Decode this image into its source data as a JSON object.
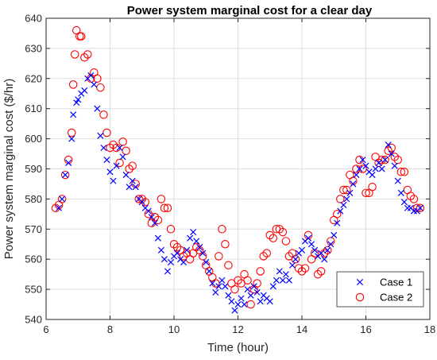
{
  "chart_data": {
    "type": "scatter",
    "title": "Power system marginal cost for a clear day",
    "xlabel": "Time (hour)",
    "ylabel": "Power system marginal cost ($/hr)",
    "xlim": [
      6,
      18
    ],
    "ylim": [
      540,
      640
    ],
    "xticks": [
      "6",
      "8",
      "10",
      "12",
      "14",
      "16",
      "18"
    ],
    "yticks": [
      "540",
      "550",
      "560",
      "570",
      "580",
      "590",
      "600",
      "610",
      "620",
      "630",
      "640"
    ],
    "grid": true,
    "legend_position": "bottom-right",
    "series": [
      {
        "name": "Case 1",
        "marker": "x",
        "color": "#0000ff",
        "points": [
          [
            6.4,
            577
          ],
          [
            6.5,
            580
          ],
          [
            6.6,
            588
          ],
          [
            6.7,
            592
          ],
          [
            6.8,
            600
          ],
          [
            6.85,
            608
          ],
          [
            6.95,
            612
          ],
          [
            7.0,
            613
          ],
          [
            7.1,
            615
          ],
          [
            7.2,
            616
          ],
          [
            7.3,
            620
          ],
          [
            7.4,
            621
          ],
          [
            7.5,
            618
          ],
          [
            7.6,
            610
          ],
          [
            7.7,
            601
          ],
          [
            7.8,
            597
          ],
          [
            7.9,
            593
          ],
          [
            8.0,
            589
          ],
          [
            8.1,
            586
          ],
          [
            8.2,
            591
          ],
          [
            8.3,
            597
          ],
          [
            8.4,
            594
          ],
          [
            8.5,
            588
          ],
          [
            8.6,
            584
          ],
          [
            8.7,
            586
          ],
          [
            8.8,
            584
          ],
          [
            8.9,
            580
          ],
          [
            9.0,
            579
          ],
          [
            9.1,
            577
          ],
          [
            9.2,
            576
          ],
          [
            9.3,
            574
          ],
          [
            9.4,
            572
          ],
          [
            9.5,
            567
          ],
          [
            9.6,
            563
          ],
          [
            9.7,
            560
          ],
          [
            9.8,
            556
          ],
          [
            9.9,
            559
          ],
          [
            10.0,
            561
          ],
          [
            10.1,
            562
          ],
          [
            10.2,
            560
          ],
          [
            10.3,
            559
          ],
          [
            10.4,
            563
          ],
          [
            10.5,
            567
          ],
          [
            10.6,
            569
          ],
          [
            10.7,
            566
          ],
          [
            10.8,
            564
          ],
          [
            10.9,
            562
          ],
          [
            11.0,
            559
          ],
          [
            11.1,
            556
          ],
          [
            11.2,
            552
          ],
          [
            11.3,
            549
          ],
          [
            11.4,
            551
          ],
          [
            11.5,
            553
          ],
          [
            11.6,
            551
          ],
          [
            11.7,
            548
          ],
          [
            11.8,
            546
          ],
          [
            11.9,
            543
          ],
          [
            12.0,
            545
          ],
          [
            12.1,
            547
          ],
          [
            12.2,
            545
          ],
          [
            12.3,
            550
          ],
          [
            12.4,
            548
          ],
          [
            12.5,
            551
          ],
          [
            12.6,
            549
          ],
          [
            12.7,
            546
          ],
          [
            12.8,
            548
          ],
          [
            12.9,
            547
          ],
          [
            13.0,
            546
          ],
          [
            13.1,
            551
          ],
          [
            13.2,
            553
          ],
          [
            13.3,
            556
          ],
          [
            13.4,
            553
          ],
          [
            13.5,
            555
          ],
          [
            13.6,
            553
          ],
          [
            13.7,
            558
          ],
          [
            13.8,
            560
          ],
          [
            13.9,
            562
          ],
          [
            14.0,
            563
          ],
          [
            14.1,
            566
          ],
          [
            14.2,
            567
          ],
          [
            14.3,
            565
          ],
          [
            14.4,
            563
          ],
          [
            14.5,
            561
          ],
          [
            14.6,
            562
          ],
          [
            14.7,
            560
          ],
          [
            14.8,
            563
          ],
          [
            14.9,
            565
          ],
          [
            15.0,
            568
          ],
          [
            15.1,
            572
          ],
          [
            15.2,
            576
          ],
          [
            15.3,
            578
          ],
          [
            15.4,
            580
          ],
          [
            15.5,
            582
          ],
          [
            15.6,
            585
          ],
          [
            15.7,
            588
          ],
          [
            15.8,
            590
          ],
          [
            15.9,
            593
          ],
          [
            16.0,
            591
          ],
          [
            16.1,
            589
          ],
          [
            16.2,
            588
          ],
          [
            16.3,
            590
          ],
          [
            16.4,
            592
          ],
          [
            16.5,
            590
          ],
          [
            16.6,
            593
          ],
          [
            16.7,
            598
          ],
          [
            16.8,
            595
          ],
          [
            16.9,
            591
          ],
          [
            17.0,
            586
          ],
          [
            17.1,
            582
          ],
          [
            17.2,
            579
          ],
          [
            17.3,
            577
          ],
          [
            17.4,
            577
          ],
          [
            17.5,
            576
          ],
          [
            17.6,
            576
          ],
          [
            17.7,
            577
          ]
        ]
      },
      {
        "name": "Case 2",
        "marker": "o",
        "color": "#ff0000",
        "points": [
          [
            6.3,
            577
          ],
          [
            6.4,
            578
          ],
          [
            6.5,
            580
          ],
          [
            6.6,
            588
          ],
          [
            6.7,
            593
          ],
          [
            6.8,
            602
          ],
          [
            6.85,
            618
          ],
          [
            6.9,
            628
          ],
          [
            6.95,
            636
          ],
          [
            7.05,
            634
          ],
          [
            7.1,
            634
          ],
          [
            7.2,
            627
          ],
          [
            7.3,
            628
          ],
          [
            7.4,
            620
          ],
          [
            7.5,
            622
          ],
          [
            7.6,
            620
          ],
          [
            7.7,
            617
          ],
          [
            7.8,
            608
          ],
          [
            7.9,
            602
          ],
          [
            8.0,
            597
          ],
          [
            8.1,
            598
          ],
          [
            8.2,
            597
          ],
          [
            8.3,
            592
          ],
          [
            8.4,
            599
          ],
          [
            8.5,
            596
          ],
          [
            8.6,
            590
          ],
          [
            8.7,
            591
          ],
          [
            8.8,
            585
          ],
          [
            8.9,
            580
          ],
          [
            9.0,
            580
          ],
          [
            9.1,
            579
          ],
          [
            9.2,
            575
          ],
          [
            9.3,
            572
          ],
          [
            9.4,
            574
          ],
          [
            9.5,
            573
          ],
          [
            9.6,
            580
          ],
          [
            9.7,
            577
          ],
          [
            9.8,
            577
          ],
          [
            9.9,
            570
          ],
          [
            10.0,
            565
          ],
          [
            10.1,
            564
          ],
          [
            10.2,
            563
          ],
          [
            10.3,
            561
          ],
          [
            10.4,
            562
          ],
          [
            10.5,
            560
          ],
          [
            10.6,
            562
          ],
          [
            10.7,
            564
          ],
          [
            10.8,
            563
          ],
          [
            10.9,
            561
          ],
          [
            11.0,
            558
          ],
          [
            11.1,
            556
          ],
          [
            11.2,
            554
          ],
          [
            11.3,
            552
          ],
          [
            11.4,
            561
          ],
          [
            11.5,
            570
          ],
          [
            11.6,
            565
          ],
          [
            11.7,
            558
          ],
          [
            11.8,
            552
          ],
          [
            11.9,
            550
          ],
          [
            12.0,
            553
          ],
          [
            12.1,
            552
          ],
          [
            12.2,
            555
          ],
          [
            12.3,
            553
          ],
          [
            12.4,
            545
          ],
          [
            12.5,
            550
          ],
          [
            12.6,
            552
          ],
          [
            12.7,
            556
          ],
          [
            12.8,
            561
          ],
          [
            12.9,
            562
          ],
          [
            13.0,
            568
          ],
          [
            13.1,
            567
          ],
          [
            13.2,
            570
          ],
          [
            13.3,
            570
          ],
          [
            13.4,
            569
          ],
          [
            13.5,
            566
          ],
          [
            13.6,
            561
          ],
          [
            13.7,
            562
          ],
          [
            13.8,
            560
          ],
          [
            13.9,
            557
          ],
          [
            14.0,
            556
          ],
          [
            14.1,
            557
          ],
          [
            14.2,
            568
          ],
          [
            14.3,
            560
          ],
          [
            14.4,
            562
          ],
          [
            14.5,
            555
          ],
          [
            14.6,
            556
          ],
          [
            14.7,
            562
          ],
          [
            14.8,
            563
          ],
          [
            14.9,
            566
          ],
          [
            15.0,
            573
          ],
          [
            15.1,
            575
          ],
          [
            15.2,
            580
          ],
          [
            15.3,
            583
          ],
          [
            15.4,
            583
          ],
          [
            15.5,
            588
          ],
          [
            15.6,
            586
          ],
          [
            15.7,
            590
          ],
          [
            15.8,
            593
          ],
          [
            15.9,
            590
          ],
          [
            16.0,
            582
          ],
          [
            16.1,
            582
          ],
          [
            16.2,
            584
          ],
          [
            16.3,
            594
          ],
          [
            16.4,
            592
          ],
          [
            16.5,
            593
          ],
          [
            16.6,
            593
          ],
          [
            16.7,
            596
          ],
          [
            16.8,
            597
          ],
          [
            16.9,
            594
          ],
          [
            17.0,
            593
          ],
          [
            17.1,
            589
          ],
          [
            17.2,
            589
          ],
          [
            17.3,
            583
          ],
          [
            17.4,
            581
          ],
          [
            17.5,
            580
          ],
          [
            17.6,
            577
          ],
          [
            17.7,
            577
          ]
        ]
      }
    ]
  }
}
